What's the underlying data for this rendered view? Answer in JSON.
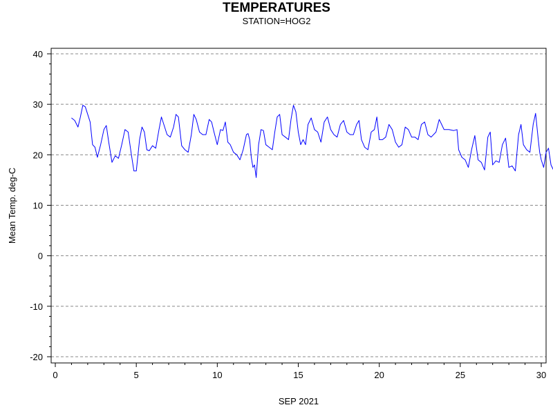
{
  "chart_data": {
    "type": "line",
    "title": "TEMPERATURES",
    "subtitle": "STATION=HOG2",
    "xlabel": "SEP 2021",
    "ylabel": "Mean Temp. deg-C",
    "xlim": [
      0,
      30
    ],
    "ylim": [
      -20,
      40
    ],
    "x_ticks": [
      "0",
      "5",
      "10",
      "15",
      "20",
      "25",
      "30"
    ],
    "y_ticks": [
      "-20",
      "-10",
      "0",
      "10",
      "20",
      "30",
      "40"
    ],
    "grid": "horizontal dashed",
    "series": [
      {
        "color": "#0000ff",
        "points": [
          [
            1.0,
            27.3
          ],
          [
            1.2,
            26.8
          ],
          [
            1.4,
            25.5
          ],
          [
            1.55,
            27.5
          ],
          [
            1.7,
            29.8
          ],
          [
            1.85,
            29.5
          ],
          [
            2.0,
            28.0
          ],
          [
            2.15,
            26.5
          ],
          [
            2.3,
            22.0
          ],
          [
            2.45,
            21.5
          ],
          [
            2.6,
            19.5
          ],
          [
            2.8,
            22.0
          ],
          [
            3.0,
            25.0
          ],
          [
            3.15,
            25.8
          ],
          [
            3.3,
            22.5
          ],
          [
            3.5,
            18.5
          ],
          [
            3.7,
            19.8
          ],
          [
            3.9,
            19.3
          ],
          [
            4.1,
            22.0
          ],
          [
            4.3,
            25.0
          ],
          [
            4.5,
            24.5
          ],
          [
            4.7,
            20.0
          ],
          [
            4.85,
            16.8
          ],
          [
            5.0,
            16.8
          ],
          [
            5.2,
            23.0
          ],
          [
            5.35,
            25.5
          ],
          [
            5.5,
            24.5
          ],
          [
            5.65,
            21.0
          ],
          [
            5.8,
            20.8
          ],
          [
            6.0,
            21.8
          ],
          [
            6.2,
            21.3
          ],
          [
            6.4,
            25.0
          ],
          [
            6.55,
            27.5
          ],
          [
            6.7,
            26.0
          ],
          [
            6.9,
            24.0
          ],
          [
            7.1,
            23.5
          ],
          [
            7.3,
            25.5
          ],
          [
            7.45,
            28.0
          ],
          [
            7.6,
            27.5
          ],
          [
            7.8,
            21.8
          ],
          [
            8.0,
            21.0
          ],
          [
            8.2,
            20.5
          ],
          [
            8.4,
            24.0
          ],
          [
            8.55,
            28.0
          ],
          [
            8.7,
            27.0
          ],
          [
            8.9,
            24.5
          ],
          [
            9.1,
            24.0
          ],
          [
            9.3,
            24.0
          ],
          [
            9.5,
            27.0
          ],
          [
            9.65,
            26.5
          ],
          [
            9.8,
            24.5
          ],
          [
            10.0,
            22.0
          ],
          [
            10.2,
            25.0
          ],
          [
            10.35,
            24.8
          ],
          [
            10.5,
            26.5
          ],
          [
            10.65,
            22.5
          ],
          [
            10.8,
            22.0
          ],
          [
            11.0,
            20.5
          ],
          [
            11.2,
            20.0
          ],
          [
            11.4,
            19.0
          ],
          [
            11.6,
            21.0
          ],
          [
            11.8,
            24.0
          ],
          [
            11.9,
            24.2
          ],
          [
            12.0,
            23.0
          ],
          [
            12.1,
            19.5
          ],
          [
            12.2,
            17.5
          ],
          [
            12.3,
            18.0
          ],
          [
            12.4,
            15.5
          ],
          [
            12.55,
            22.0
          ],
          [
            12.7,
            25.0
          ],
          [
            12.85,
            24.8
          ],
          [
            13.0,
            22.0
          ],
          [
            13.2,
            21.5
          ],
          [
            13.4,
            21.0
          ],
          [
            13.55,
            24.5
          ],
          [
            13.7,
            27.5
          ],
          [
            13.85,
            28.0
          ],
          [
            14.0,
            24.0
          ],
          [
            14.2,
            23.5
          ],
          [
            14.4,
            23.0
          ],
          [
            14.55,
            27.0
          ],
          [
            14.7,
            29.8
          ],
          [
            14.85,
            28.5
          ],
          [
            15.0,
            24.5
          ],
          [
            15.15,
            22.0
          ],
          [
            15.3,
            23.0
          ],
          [
            15.45,
            22.0
          ],
          [
            15.6,
            26.0
          ],
          [
            15.8,
            27.3
          ],
          [
            16.0,
            25.0
          ],
          [
            16.2,
            24.5
          ],
          [
            16.4,
            22.5
          ],
          [
            16.6,
            26.5
          ],
          [
            16.8,
            27.5
          ],
          [
            17.0,
            25.0
          ],
          [
            17.2,
            24.0
          ],
          [
            17.4,
            23.5
          ],
          [
            17.6,
            26.0
          ],
          [
            17.8,
            26.8
          ],
          [
            18.0,
            24.5
          ],
          [
            18.2,
            24.0
          ],
          [
            18.4,
            24.0
          ],
          [
            18.6,
            26.0
          ],
          [
            18.75,
            26.8
          ],
          [
            18.9,
            23.0
          ],
          [
            19.1,
            21.5
          ],
          [
            19.3,
            21.0
          ],
          [
            19.5,
            24.5
          ],
          [
            19.7,
            25.0
          ],
          [
            19.85,
            27.5
          ],
          [
            20.0,
            23.0
          ],
          [
            20.2,
            23.0
          ],
          [
            20.4,
            23.5
          ],
          [
            20.6,
            26.0
          ],
          [
            20.8,
            25.0
          ],
          [
            21.0,
            22.5
          ],
          [
            21.2,
            21.5
          ],
          [
            21.4,
            22.0
          ],
          [
            21.6,
            25.5
          ],
          [
            21.8,
            25.0
          ],
          [
            22.0,
            23.5
          ],
          [
            22.2,
            23.5
          ],
          [
            22.4,
            23.0
          ],
          [
            22.6,
            26.0
          ],
          [
            22.8,
            26.5
          ],
          [
            23.0,
            24.0
          ],
          [
            23.2,
            23.5
          ],
          [
            23.5,
            24.5
          ],
          [
            23.7,
            27.0
          ],
          [
            23.85,
            26.0
          ],
          [
            24.0,
            25.0
          ],
          [
            24.3,
            25.0
          ],
          [
            24.6,
            24.8
          ],
          [
            24.8,
            25.0
          ],
          [
            24.9,
            21.0
          ],
          [
            25.1,
            19.5
          ],
          [
            25.3,
            19.0
          ],
          [
            25.5,
            17.5
          ],
          [
            25.7,
            21.0
          ],
          [
            25.9,
            23.8
          ],
          [
            26.1,
            19.0
          ],
          [
            26.3,
            18.5
          ],
          [
            26.5,
            17.0
          ],
          [
            26.7,
            23.5
          ],
          [
            26.85,
            24.5
          ],
          [
            27.0,
            18.0
          ],
          [
            27.2,
            18.8
          ],
          [
            27.4,
            18.5
          ],
          [
            27.6,
            22.0
          ],
          [
            27.8,
            23.3
          ],
          [
            28.0,
            17.5
          ],
          [
            28.2,
            17.8
          ],
          [
            28.4,
            16.8
          ],
          [
            28.6,
            24.0
          ],
          [
            28.75,
            26.0
          ],
          [
            28.9,
            22.0
          ],
          [
            29.1,
            21.0
          ],
          [
            29.3,
            20.5
          ],
          [
            29.5,
            26.0
          ],
          [
            29.65,
            28.2
          ],
          [
            29.8,
            23.5
          ],
          [
            29.9,
            20.5
          ],
          [
            30.0,
            19.0
          ],
          [
            30.15,
            17.5
          ],
          [
            30.3,
            20.5
          ],
          [
            30.45,
            21.3
          ],
          [
            30.6,
            18.0
          ],
          [
            30.75,
            17.0
          ],
          [
            30.9,
            15.2
          ]
        ]
      }
    ]
  }
}
